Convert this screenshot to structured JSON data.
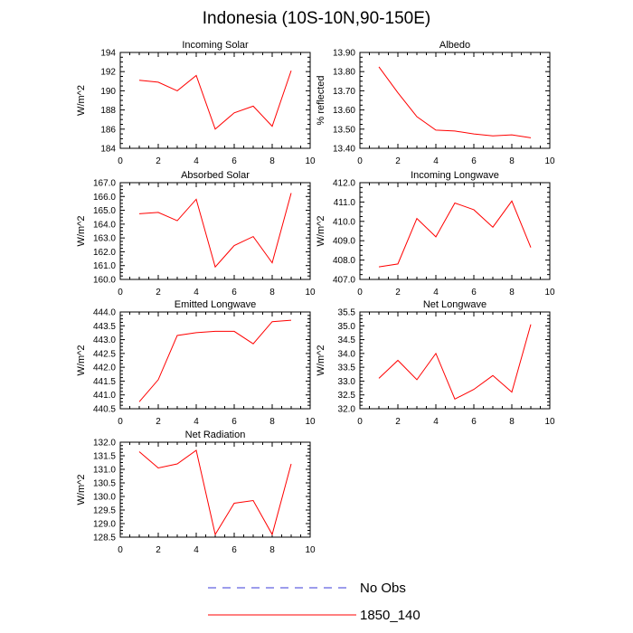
{
  "chart_data": {
    "title": "Indonesia (10S-10N,90-150E)",
    "legend": [
      {
        "name": "No Obs",
        "style": "dashed",
        "color": "#3a3ad8"
      },
      {
        "name": "1850_140",
        "style": "solid",
        "color": "#ff0000"
      }
    ],
    "panels": [
      {
        "type": "line",
        "title": "Incoming Solar",
        "ylabel": "W/m^2",
        "xlim": [
          0,
          10
        ],
        "xticks": [
          "0",
          "2",
          "4",
          "6",
          "8",
          "10"
        ],
        "ylim": [
          184,
          194
        ],
        "yticks": [
          "184",
          "186",
          "188",
          "190",
          "192",
          "194"
        ],
        "series": [
          {
            "name": "1850_140",
            "x": [
              1,
              2,
              3,
              4,
              5,
              6,
              7,
              8,
              9
            ],
            "values": [
              191.1,
              190.9,
              190.0,
              191.6,
              186.0,
              187.7,
              188.4,
              186.3,
              192.1
            ]
          }
        ]
      },
      {
        "type": "line",
        "title": "Albedo",
        "ylabel": "% reflected",
        "xlim": [
          0,
          10
        ],
        "xticks": [
          "0",
          "2",
          "4",
          "6",
          "8",
          "10"
        ],
        "ylim": [
          13.4,
          13.9
        ],
        "yticks": [
          "13.40",
          "13.50",
          "13.60",
          "13.70",
          "13.80",
          "13.90"
        ],
        "series": [
          {
            "name": "1850_140",
            "x": [
              1,
              2,
              3,
              4,
              5,
              6,
              7,
              8,
              9
            ],
            "values": [
              13.825,
              13.69,
              13.565,
              13.495,
              13.49,
              13.475,
              13.465,
              13.47,
              13.455
            ]
          }
        ]
      },
      {
        "type": "line",
        "title": "Absorbed Solar",
        "ylabel": "W/m^2",
        "xlim": [
          0,
          10
        ],
        "xticks": [
          "0",
          "2",
          "4",
          "6",
          "8",
          "10"
        ],
        "ylim": [
          160,
          167
        ],
        "yticks": [
          "160.0",
          "161.0",
          "162.0",
          "163.0",
          "164.0",
          "165.0",
          "166.0",
          "167.0"
        ],
        "series": [
          {
            "name": "1850_140",
            "x": [
              1,
              2,
              3,
              4,
              5,
              6,
              7,
              8,
              9
            ],
            "values": [
              164.75,
              164.85,
              164.25,
              165.8,
              160.9,
              162.45,
              163.1,
              161.2,
              166.25
            ]
          }
        ]
      },
      {
        "type": "line",
        "title": "Incoming Longwave",
        "ylabel": "W/m^2",
        "xlim": [
          0,
          10
        ],
        "xticks": [
          "0",
          "2",
          "4",
          "6",
          "8",
          "10"
        ],
        "ylim": [
          407,
          412
        ],
        "yticks": [
          "407.0",
          "408.0",
          "409.0",
          "410.0",
          "411.0",
          "412.0"
        ],
        "series": [
          {
            "name": "1850_140",
            "x": [
              1,
              2,
              3,
              4,
              5,
              6,
              7,
              8,
              9
            ],
            "values": [
              407.65,
              407.8,
              410.15,
              409.2,
              410.95,
              410.6,
              409.7,
              411.05,
              408.65
            ]
          }
        ]
      },
      {
        "type": "line",
        "title": "Emitted Longwave",
        "ylabel": "W/m^2",
        "xlim": [
          0,
          10
        ],
        "xticks": [
          "0",
          "2",
          "4",
          "6",
          "8",
          "10"
        ],
        "ylim": [
          440.5,
          444.0
        ],
        "yticks": [
          "440.5",
          "441.0",
          "441.5",
          "442.0",
          "442.5",
          "443.0",
          "443.5",
          "444.0"
        ],
        "series": [
          {
            "name": "1850_140",
            "x": [
              1,
              2,
              3,
              4,
              5,
              6,
              7,
              8,
              9
            ],
            "values": [
              440.75,
              441.55,
              443.15,
              443.25,
              443.3,
              443.3,
              442.85,
              443.65,
              443.7
            ]
          }
        ]
      },
      {
        "type": "line",
        "title": "Net Longwave",
        "ylabel": "W/m^2",
        "xlim": [
          0,
          10
        ],
        "xticks": [
          "0",
          "2",
          "4",
          "6",
          "8",
          "10"
        ],
        "ylim": [
          32.0,
          35.5
        ],
        "yticks": [
          "32.0",
          "32.5",
          "33.0",
          "33.5",
          "34.0",
          "34.5",
          "35.0",
          "35.5"
        ],
        "series": [
          {
            "name": "1850_140",
            "x": [
              1,
              2,
              3,
              4,
              5,
              6,
              7,
              8,
              9
            ],
            "values": [
              33.1,
              33.75,
              33.05,
              34.0,
              32.35,
              32.7,
              33.2,
              32.6,
              35.05
            ]
          }
        ]
      },
      {
        "type": "line",
        "title": "Net Radiation",
        "ylabel": "W/m^2",
        "xlim": [
          0,
          10
        ],
        "xticks": [
          "0",
          "2",
          "4",
          "6",
          "8",
          "10"
        ],
        "ylim": [
          128.5,
          132.0
        ],
        "yticks": [
          "128.5",
          "129.0",
          "129.5",
          "130.0",
          "130.5",
          "131.0",
          "131.5",
          "132.0"
        ],
        "series": [
          {
            "name": "1850_140",
            "x": [
              1,
              2,
              3,
              4,
              5,
              6,
              7,
              8,
              9
            ],
            "values": [
              131.65,
              131.05,
              131.2,
              131.7,
              128.6,
              129.75,
              129.85,
              128.6,
              131.2
            ]
          }
        ]
      }
    ]
  }
}
